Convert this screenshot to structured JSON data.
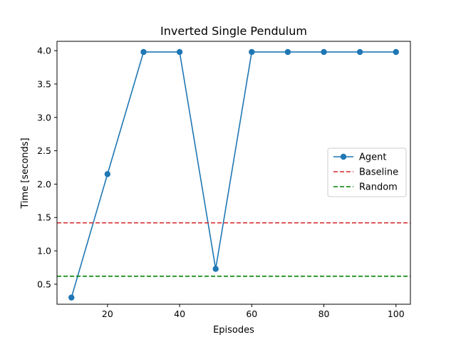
{
  "chart_data": {
    "type": "line",
    "title": "Inverted Single Pendulum",
    "xlabel": "Episodes",
    "ylabel": "Time [seconds]",
    "xlim": [
      6,
      104
    ],
    "ylim": [
      0.2,
      4.14
    ],
    "xticks": [
      20,
      40,
      60,
      80,
      100
    ],
    "yticks": [
      0.5,
      1.0,
      1.5,
      2.0,
      2.5,
      3.0,
      3.5,
      4.0
    ],
    "ytick_labels": [
      "0.5",
      "1.0",
      "1.5",
      "2.0",
      "2.5",
      "3.0",
      "3.5",
      "4.0"
    ],
    "grid": false,
    "legend_position": "center-right",
    "series": [
      {
        "name": "Agent",
        "color": "#1f77b4",
        "style": "solid-marker",
        "x": [
          10,
          20,
          30,
          40,
          50,
          60,
          70,
          80,
          90,
          100
        ],
        "y": [
          0.3,
          2.15,
          3.98,
          3.98,
          0.73,
          3.98,
          3.98,
          3.98,
          3.98,
          3.98
        ]
      },
      {
        "name": "Baseline",
        "color": "#d62728",
        "style": "dashed-hline",
        "y": 1.42
      },
      {
        "name": "Random",
        "color": "#008000",
        "style": "dashed-hline",
        "y": 0.62
      }
    ]
  }
}
